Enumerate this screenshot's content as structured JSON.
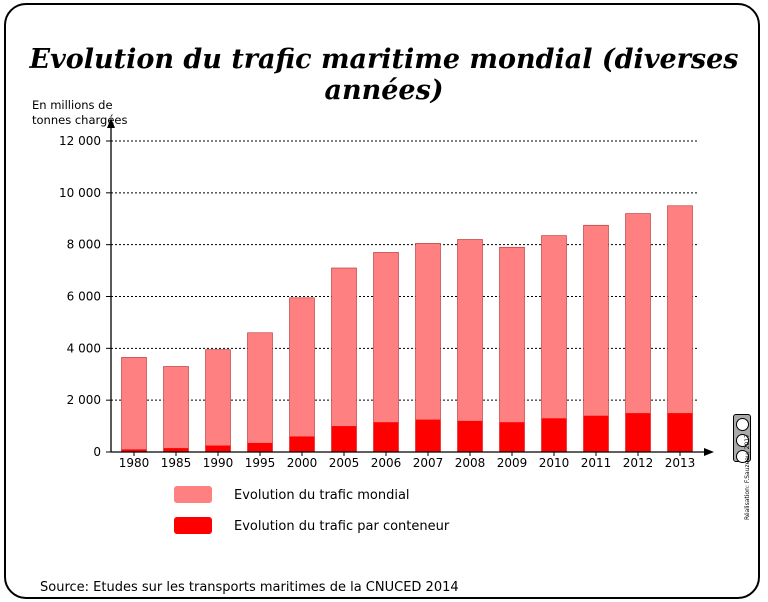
{
  "title": "Evolution du trafic maritime mondial (diverses années)",
  "source": "Source: Etudes sur les transports maritimes de la CNUCED 2014",
  "credit": "Réalisation: F.Sauzeau, 2017",
  "icons": {
    "license": "cc-license-icon"
  },
  "colors": {
    "world": "#ff8080",
    "container": "#ff0000"
  },
  "chart_data": {
    "type": "bar",
    "stacked": "overlay",
    "ylabel": "En millions de\ntonnes chargées",
    "ylabel_lines": [
      "En millions de",
      "tonnes chargées"
    ],
    "ylim": [
      0,
      12000
    ],
    "yticks": [
      0,
      2000,
      4000,
      6000,
      8000,
      10000,
      12000
    ],
    "ytick_labels": [
      "0",
      "2 000",
      "4 000",
      "6 000",
      "8 000",
      "10 000",
      "12 000"
    ],
    "grid": true,
    "legend_position": "bottom",
    "categories": [
      "1980",
      "1985",
      "1990",
      "1995",
      "2000",
      "2005",
      "2006",
      "2007",
      "2008",
      "2009",
      "2010",
      "2011",
      "2012",
      "2013"
    ],
    "series": [
      {
        "name": "Evolution du trafic mondial",
        "color": "#ff8080",
        "values": [
          3650,
          3300,
          3950,
          4600,
          5950,
          7100,
          7700,
          8050,
          8200,
          7900,
          8350,
          8750,
          9200,
          9500
        ]
      },
      {
        "name": "Evolution du trafic par conteneur",
        "color": "#ff0000",
        "values": [
          100,
          150,
          250,
          350,
          600,
          1000,
          1150,
          1250,
          1200,
          1150,
          1300,
          1400,
          1500,
          1500
        ]
      }
    ]
  }
}
